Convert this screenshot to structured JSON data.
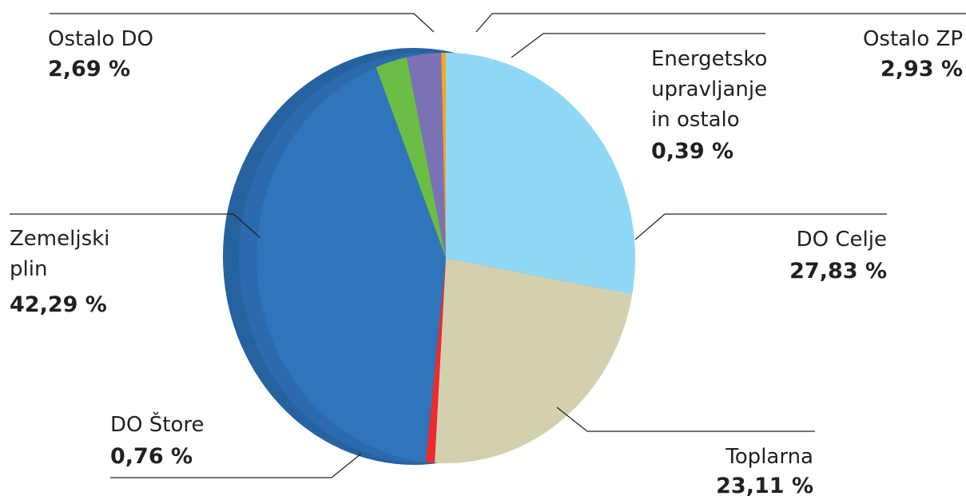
{
  "chart_data": {
    "type": "pie",
    "title": "",
    "slices": [
      {
        "label": "DO Celje",
        "display": "27,83 %",
        "value": 27.83,
        "color": "#8fd8f5"
      },
      {
        "label": "Toplarna",
        "display": "23,11 %",
        "value": 23.11,
        "color": "#d3d0b0"
      },
      {
        "label": "DO Štore",
        "display": "0,76 %",
        "value": 0.76,
        "color": "#ee2b2b"
      },
      {
        "label": "Zemeljski plin",
        "display": "42,29 %",
        "value": 42.29,
        "color": "#2e75bb"
      },
      {
        "label": "Ostalo DO",
        "display": "2,69 %",
        "value": 2.69,
        "color": "#6cbd46"
      },
      {
        "label": "Ostalo ZP",
        "display": "2,93 %",
        "value": 2.93,
        "color": "#7b72b6"
      },
      {
        "label": "Energetsko upravljanje in ostalo",
        "display": "0,39 %",
        "value": 0.39,
        "color": "#f5a623"
      }
    ]
  },
  "labels": {
    "do_celje": {
      "line1": "DO Celje",
      "value": "27,83 %"
    },
    "toplarna": {
      "line1": "Toplarna",
      "value": "23,11 %"
    },
    "do_store": {
      "line1": "DO Štore",
      "value": "0,76 %"
    },
    "zemeljski_plin": {
      "line1": "Zemeljski",
      "line2": "plin",
      "value": "42,29 %"
    },
    "ostalo_do": {
      "line1": "Ostalo DO",
      "value": "2,69 %"
    },
    "ostalo_zp": {
      "line1": "Ostalo ZP",
      "value": "2,93 %"
    },
    "energetsko": {
      "line1": "Energetsko",
      "line2": "upravljanje",
      "line3": "in ostalo",
      "value": "0,39 %"
    }
  }
}
